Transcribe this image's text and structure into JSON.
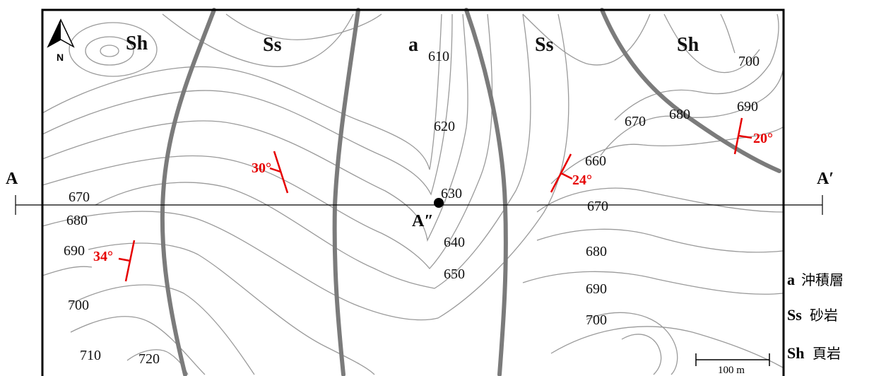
{
  "units": {
    "sh_left": "Sh",
    "ss_left": "Ss",
    "a_center": "a",
    "ss_right": "Ss",
    "sh_right": "Sh"
  },
  "contour_labels": {
    "c610": "610",
    "c620": "620",
    "c630": "630",
    "c640": "640",
    "c650": "650",
    "c660": "660",
    "c670_right_top": "670",
    "c680_right_top": "680",
    "c690_right_top": "690",
    "c700_right_top": "700",
    "c670_left": "670",
    "c680_left": "680",
    "c690_left": "690",
    "c700_left": "700",
    "c710_left": "710",
    "c720_left": "720",
    "c670_right_mid": "670",
    "c680_right_mid": "680",
    "c690_right_mid": "690",
    "c700_right_bottom": "700"
  },
  "dips": {
    "d30": "30°",
    "d34": "34°",
    "d24": "24°",
    "d20": "20°"
  },
  "profile": {
    "start": "A",
    "end": "A′",
    "point": "A″"
  },
  "north_arrow": {
    "letter": "N",
    "icon": "north-arrow-icon"
  },
  "scale_bar": {
    "label": "100 m"
  },
  "legend": [
    {
      "key": "a",
      "text": "沖積層"
    },
    {
      "key": "Ss",
      "text": "砂岩"
    },
    {
      "key": "Sh",
      "text": "頁岩"
    }
  ],
  "colors": {
    "contour": "#9a9a9a",
    "boundary": "#7b7b7b",
    "dip_symbol": "#e60000"
  }
}
